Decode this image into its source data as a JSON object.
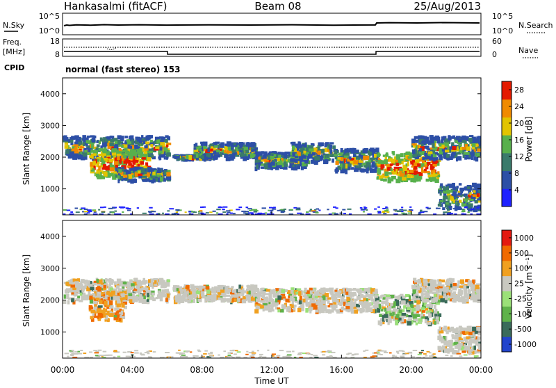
{
  "header": {
    "station": "Hankasalmi (fitACF)",
    "beam": "Beam 08",
    "date": "25/Aug/2013"
  },
  "noise_panel": {
    "left_label": "N.Sky",
    "right_label": "N.Search",
    "ticks_left": [
      "10^5",
      "10^0"
    ],
    "ticks_right": [
      "10^5",
      "10^0"
    ]
  },
  "freq_panel": {
    "left_label_1": "Freq.",
    "left_label_2": "[MHz]",
    "ticks_left": [
      "18",
      "8"
    ],
    "right_label": "Nave",
    "ticks_right": [
      "60",
      "0"
    ],
    "cpid_label": "CPID",
    "cpid_text": "normal (fast stereo) 153"
  },
  "time_axis": {
    "ticks": [
      "00:00",
      "04:00",
      "08:00",
      "12:00",
      "16:00",
      "20:00",
      "00:00"
    ],
    "label": "Time UT"
  },
  "chart_data": [
    {
      "type": "heatmap",
      "panel": "power",
      "ylabel": "Slant Range [km]",
      "yticks": [
        "1000",
        "2000",
        "3000",
        "4000"
      ],
      "xlim": [
        "00:00",
        "24:00"
      ],
      "ylim": [
        180,
        4500
      ],
      "colorbar": {
        "label": "Power [dB]",
        "ticks": [
          "4",
          "8",
          "12",
          "16",
          "20",
          "24",
          "28"
        ],
        "range": [
          0,
          30
        ],
        "colors": [
          "#1f22ff",
          "#2d4fa6",
          "#3a7a6b",
          "#58b04c",
          "#e2c400",
          "#f08a00",
          "#e41a00"
        ]
      },
      "bands": [
        {
          "t0": 0.0,
          "t1": 6.0,
          "r_lo": 2000,
          "r_hi": 2700
        },
        {
          "t0": 1.5,
          "t1": 5.0,
          "r_lo": 1400,
          "r_hi": 2300
        },
        {
          "t0": 3.0,
          "t1": 6.0,
          "r_lo": 1300,
          "r_hi": 1700
        },
        {
          "t0": 6.3,
          "t1": 8.5,
          "r_lo": 2000,
          "r_hi": 2100
        },
        {
          "t0": 7.5,
          "t1": 11.0,
          "r_lo": 2000,
          "r_hi": 2500
        },
        {
          "t0": 11.0,
          "t1": 14.0,
          "r_lo": 1700,
          "r_hi": 2200
        },
        {
          "t0": 13.0,
          "t1": 15.5,
          "r_lo": 1900,
          "r_hi": 2500
        },
        {
          "t0": 15.5,
          "t1": 18.0,
          "r_lo": 1600,
          "r_hi": 2300
        },
        {
          "t0": 18.0,
          "t1": 21.5,
          "r_lo": 1300,
          "r_hi": 2200
        },
        {
          "t0": 20.0,
          "t1": 24.0,
          "r_lo": 2000,
          "r_hi": 2700
        },
        {
          "t0": 21.5,
          "t1": 24.0,
          "r_lo": 400,
          "r_hi": 1200
        },
        {
          "t0": 0.0,
          "t1": 24.0,
          "r_lo": 180,
          "r_hi": 450
        }
      ]
    },
    {
      "type": "heatmap",
      "panel": "velocity",
      "ylabel": "Slant Range [km]",
      "yticks": [
        "1000",
        "2000",
        "3000",
        "4000"
      ],
      "xlim": [
        "00:00",
        "24:00"
      ],
      "ylim": [
        180,
        4500
      ],
      "colorbar": {
        "label": "Velocity [m s⁻¹]",
        "ticks": [
          "1000",
          "500",
          "100",
          "25",
          "-25",
          "-100",
          "-500",
          "-1000"
        ],
        "colors": [
          "#2244cc",
          "#3a6b5a",
          "#5fb24a",
          "#9be078",
          "#c8c8c0",
          "#f0a020",
          "#f06a00",
          "#e41a10"
        ]
      },
      "bands": [
        {
          "t0": 0.0,
          "t1": 6.0,
          "r_lo": 2000,
          "r_hi": 2700
        },
        {
          "t0": 1.5,
          "t1": 3.5,
          "r_lo": 1400,
          "r_hi": 2300
        },
        {
          "t0": 6.3,
          "t1": 11.0,
          "r_lo": 2000,
          "r_hi": 2500
        },
        {
          "t0": 11.0,
          "t1": 18.0,
          "r_lo": 1700,
          "r_hi": 2400
        },
        {
          "t0": 18.0,
          "t1": 21.5,
          "r_lo": 1300,
          "r_hi": 2200
        },
        {
          "t0": 20.0,
          "t1": 24.0,
          "r_lo": 2000,
          "r_hi": 2700
        },
        {
          "t0": 21.5,
          "t1": 24.0,
          "r_lo": 400,
          "r_hi": 1200
        },
        {
          "t0": 0.0,
          "t1": 24.0,
          "r_lo": 180,
          "r_hi": 450
        }
      ]
    }
  ]
}
